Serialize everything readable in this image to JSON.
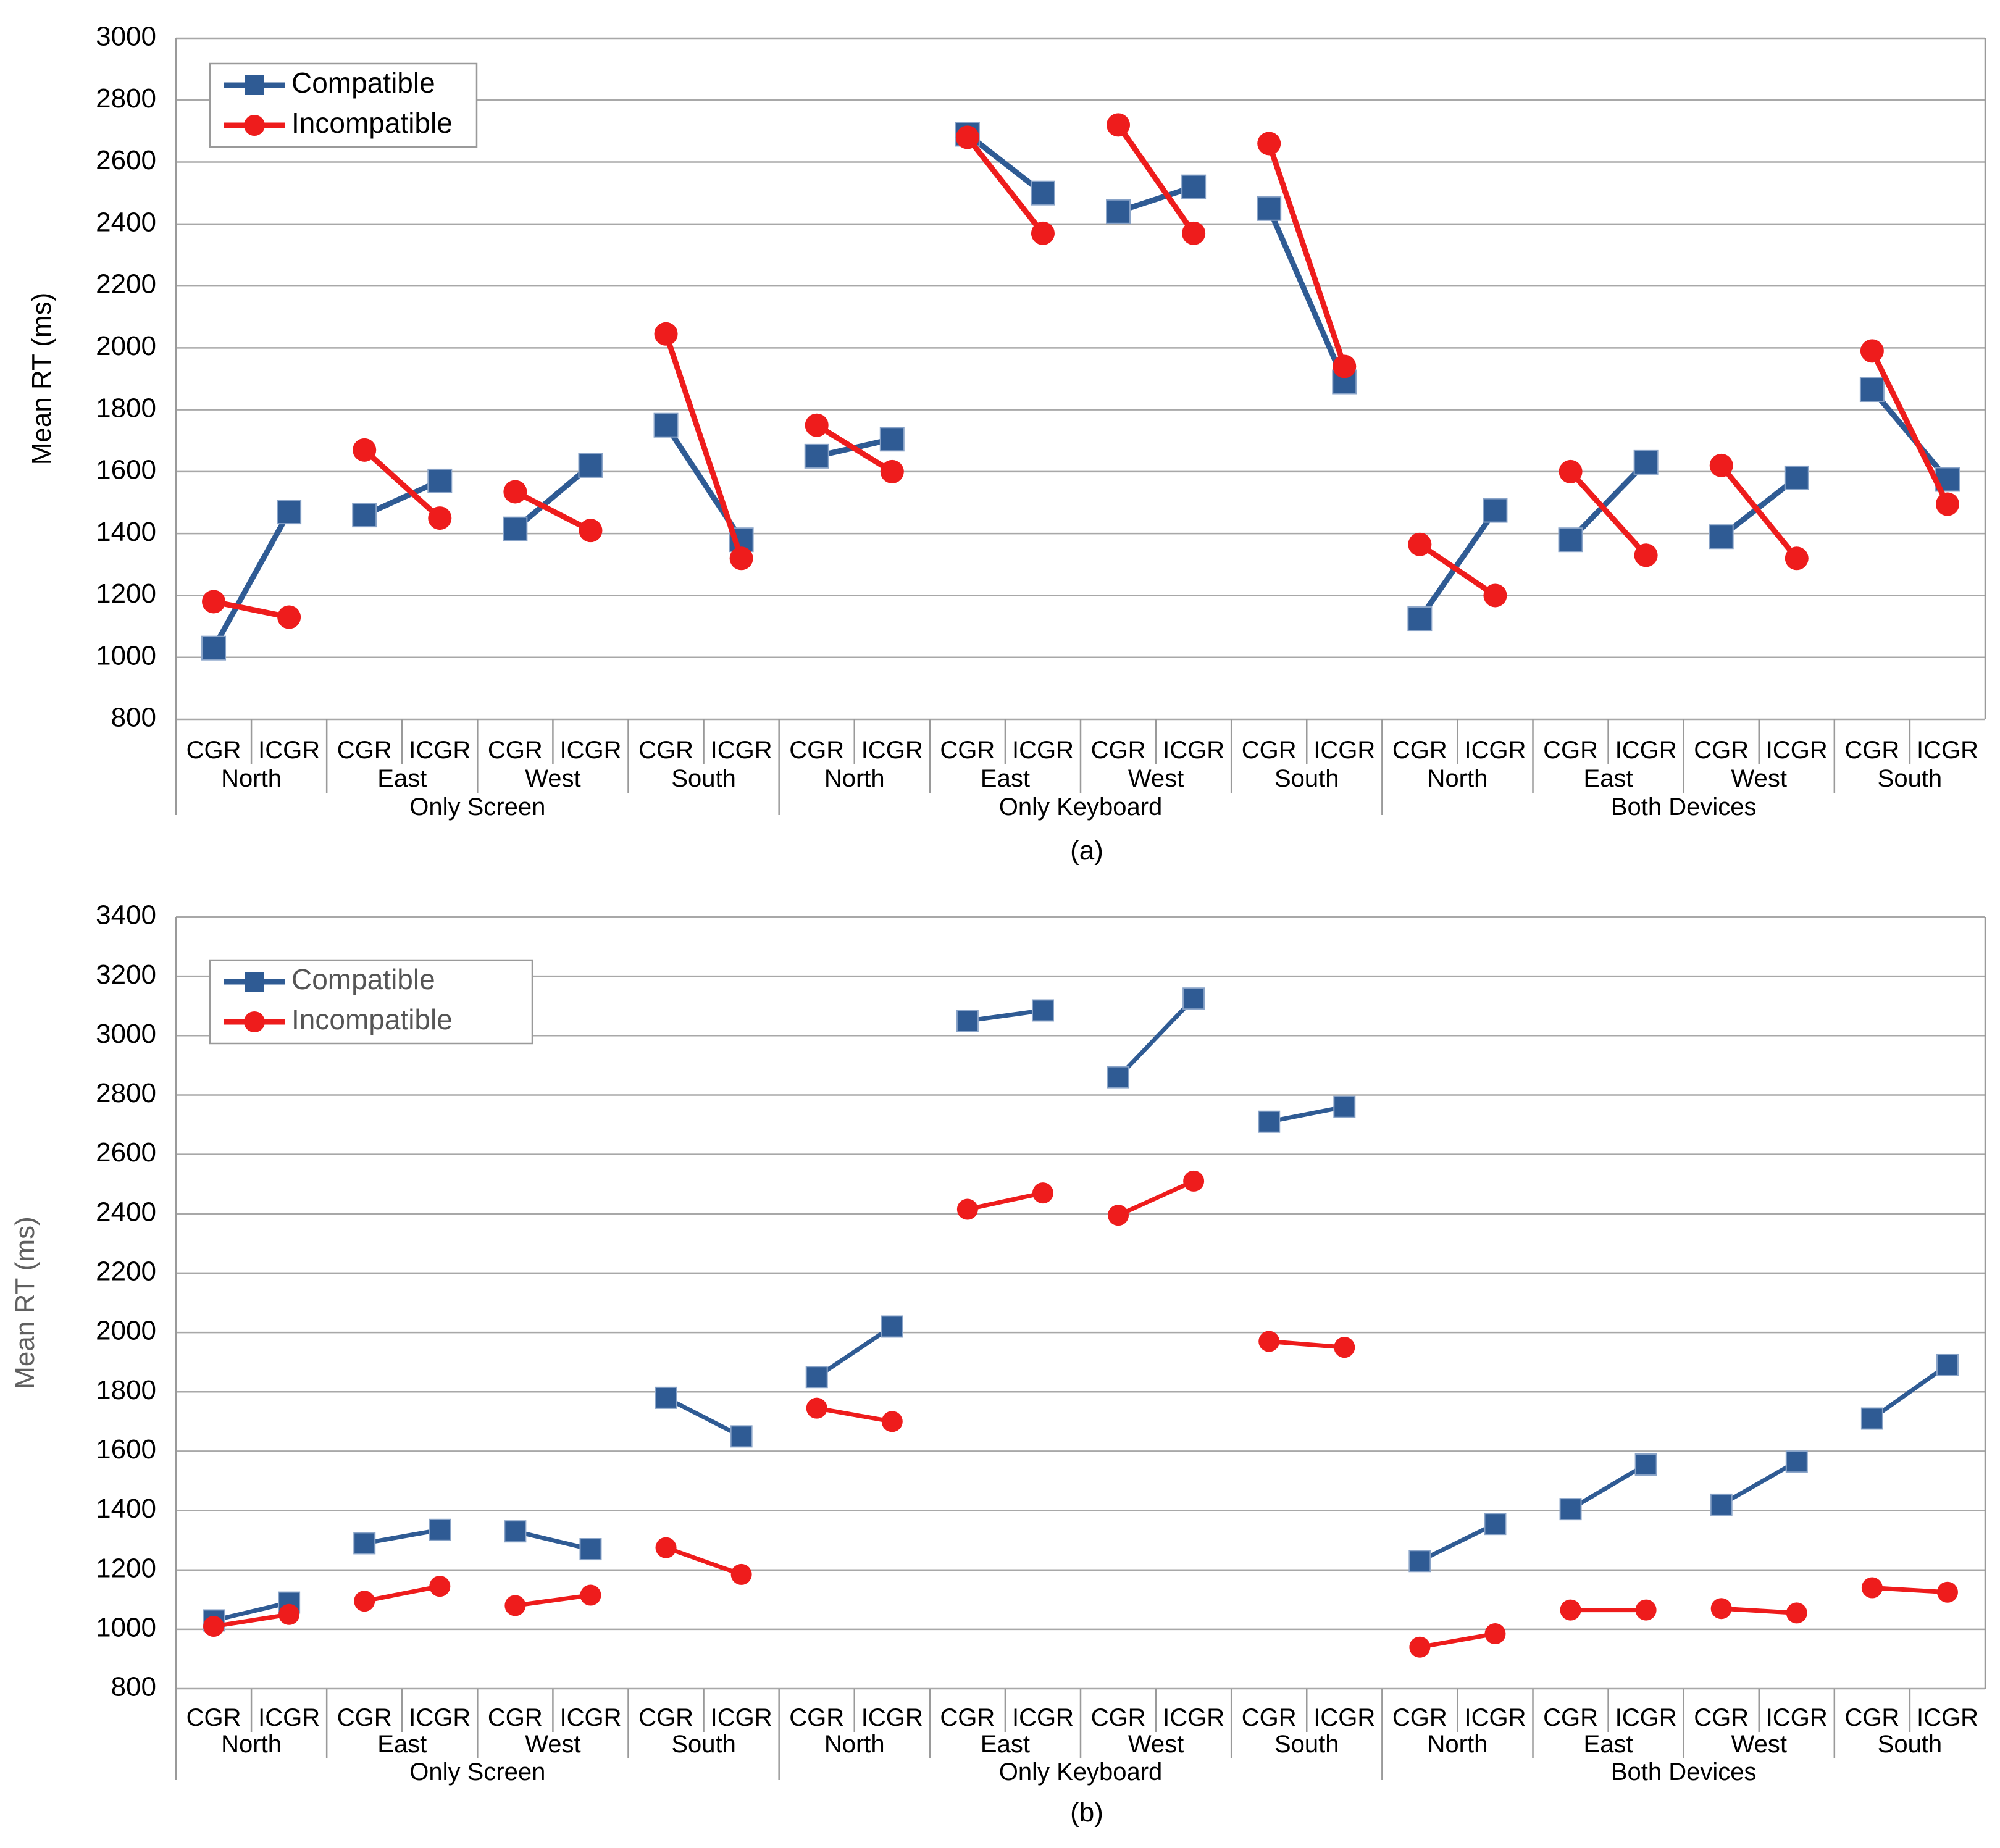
{
  "chart_data": [
    {
      "type": "line",
      "caption": "(a)",
      "ylabel": "Mean RT (ms)",
      "ylim": [
        800,
        3000
      ],
      "yticks": [
        800,
        1000,
        1200,
        1400,
        1600,
        1800,
        2000,
        2200,
        2400,
        2600,
        2800,
        3000
      ],
      "level1": [
        "CGR",
        "ICGR"
      ],
      "level2": [
        "North",
        "East",
        "West",
        "South"
      ],
      "level3": [
        "Only Screen",
        "Only Keyboard",
        "Both Devices"
      ],
      "legend": [
        "Compatible",
        "Incompatible"
      ],
      "colors": {
        "Compatible": "#2f5b94",
        "Incompatible": "#ee1c1c"
      },
      "series": [
        {
          "name": "Compatible",
          "values": [
            1030,
            1470,
            1460,
            1570,
            1415,
            1620,
            1750,
            1380,
            1650,
            1705,
            2690,
            2500,
            2440,
            2520,
            2450,
            1890,
            1125,
            1475,
            1380,
            1630,
            1390,
            1580,
            1865,
            1575
          ]
        },
        {
          "name": "Incompatible",
          "values": [
            1180,
            1130,
            1670,
            1450,
            1535,
            1410,
            2045,
            1320,
            1750,
            1600,
            2680,
            2370,
            2720,
            2370,
            2660,
            1940,
            1365,
            1200,
            1600,
            1330,
            1620,
            1320,
            1990,
            1495
          ]
        }
      ]
    },
    {
      "type": "line",
      "caption": "(b)",
      "ylabel": "Mean RT (ms)",
      "ylim": [
        800,
        3400
      ],
      "yticks": [
        800,
        1000,
        1200,
        1400,
        1600,
        1800,
        2000,
        2200,
        2400,
        2600,
        2800,
        3000,
        3200,
        3400
      ],
      "level1": [
        "CGR",
        "ICGR"
      ],
      "level2": [
        "North",
        "East",
        "West",
        "South"
      ],
      "level3": [
        "Only Screen",
        "Only Keyboard",
        "Both Devices"
      ],
      "legend": [
        "Compatible",
        "Incompatible"
      ],
      "colors": {
        "Compatible": "#2f5b94",
        "Incompatible": "#ee1c1c"
      },
      "series": [
        {
          "name": "Compatible",
          "values": [
            1030,
            1090,
            1290,
            1335,
            1330,
            1270,
            1780,
            1650,
            1850,
            2020,
            3050,
            3085,
            2860,
            3125,
            2710,
            2760,
            1230,
            1355,
            1405,
            1555,
            1420,
            1565,
            1710,
            1890
          ]
        },
        {
          "name": "Incompatible",
          "values": [
            1010,
            1050,
            1095,
            1145,
            1080,
            1115,
            1275,
            1185,
            1745,
            1700,
            2415,
            2470,
            2395,
            2510,
            1970,
            1950,
            940,
            985,
            1065,
            1065,
            1070,
            1055,
            1140,
            1125
          ]
        }
      ]
    }
  ]
}
